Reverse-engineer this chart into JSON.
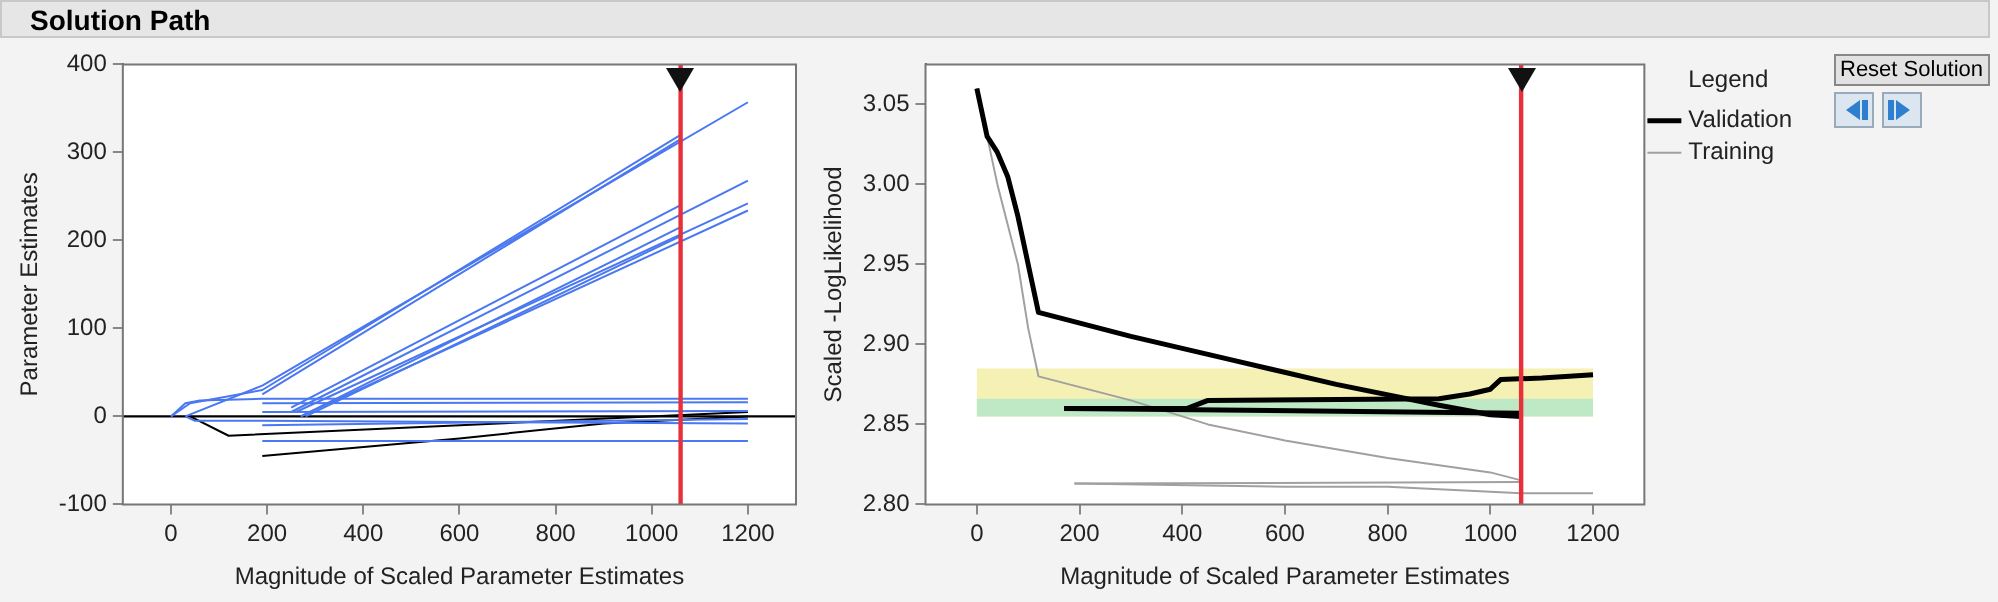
{
  "chart_data": [
    {
      "type": "line",
      "title": "Solution Path",
      "xlabel": "Magnitude of Scaled Parameter Estimates",
      "ylabel": "Parameter Estimates",
      "xlim": [
        -100,
        1300
      ],
      "xticks": [
        0,
        200,
        400,
        600,
        800,
        1000,
        1200
      ],
      "ylim": [
        -100,
        400
      ],
      "yticks": [
        -100,
        0,
        100,
        200,
        300,
        400
      ],
      "grid": false,
      "legend": false,
      "marker": "none",
      "ref_lines": [
        {
          "axis": "y",
          "value": 0,
          "color": "#000000"
        },
        {
          "axis": "x",
          "value": 1060,
          "color": "#e8303a"
        }
      ],
      "series": [
        {
          "color": "#4a78f0",
          "x": [
            0,
            40,
            190,
            1060
          ],
          "values": [
            0,
            15,
            30,
            320
          ]
        },
        {
          "color": "#4a78f0",
          "x": [
            30,
            190,
            1200
          ],
          "values": [
            0,
            35,
            357
          ]
        },
        {
          "color": "#4a78f0",
          "x": [
            190,
            1060
          ],
          "values": [
            25,
            315
          ]
        },
        {
          "color": "#4a78f0",
          "x": [
            250,
            1060
          ],
          "values": [
            10,
            240
          ]
        },
        {
          "color": "#4a78f0",
          "x": [
            250,
            1200
          ],
          "values": [
            5,
            268
          ]
        },
        {
          "color": "#4a78f0",
          "x": [
            270,
            1060
          ],
          "values": [
            0,
            215
          ]
        },
        {
          "color": "#4a78f0",
          "x": [
            280,
            1060
          ],
          "values": [
            0,
            205
          ]
        },
        {
          "color": "#4a78f0",
          "x": [
            260,
            1200
          ],
          "values": [
            5,
            242
          ]
        },
        {
          "color": "#4a78f0",
          "x": [
            270,
            1200
          ],
          "values": [
            0,
            234
          ]
        },
        {
          "color": "#4a78f0",
          "x": [
            0,
            30,
            60,
            190,
            1200
          ],
          "values": [
            0,
            15,
            18,
            20,
            20
          ]
        },
        {
          "color": "#4a78f0",
          "x": [
            190,
            1200
          ],
          "values": [
            15,
            16
          ]
        },
        {
          "color": "#4a78f0",
          "x": [
            190,
            1200
          ],
          "values": [
            5,
            6
          ]
        },
        {
          "color": "#4a78f0",
          "x": [
            30,
            50,
            190,
            1200
          ],
          "values": [
            0,
            -5,
            -5,
            -8
          ]
        },
        {
          "color": "#4a78f0",
          "x": [
            190,
            1200
          ],
          "values": [
            -10,
            -3
          ]
        },
        {
          "color": "#4a78f0",
          "x": [
            190,
            1200
          ],
          "values": [
            -28,
            -28
          ]
        },
        {
          "color": "#000000",
          "x": [
            40,
            120,
            1200
          ],
          "values": [
            0,
            -22,
            5
          ]
        },
        {
          "color": "#000000",
          "x": [
            190,
            600,
            900,
            1200
          ],
          "values": [
            -45,
            -25,
            -8,
            0
          ]
        }
      ]
    },
    {
      "type": "line",
      "xlabel": "Magnitude of Scaled Parameter Estimates",
      "ylabel": "Scaled -LogLikelihood",
      "xlim": [
        -100,
        1300
      ],
      "xticks": [
        0,
        200,
        400,
        600,
        800,
        1000,
        1200
      ],
      "ylim": [
        2.8,
        3.075
      ],
      "yticks": [
        {
          "value": 2.8,
          "label": "2.80"
        },
        {
          "value": 2.85,
          "label": "2.85"
        },
        {
          "value": 2.9,
          "label": "2.90"
        },
        {
          "value": 2.95,
          "label": "2.95"
        },
        {
          "value": 3.0,
          "label": "3.00"
        },
        {
          "value": 3.05,
          "label": "3.05"
        }
      ],
      "grid": false,
      "legend": "right",
      "legend_title": "Legend",
      "marker": "none",
      "annotations": [
        "Reset Solution"
      ],
      "bands": [
        {
          "axis": "y",
          "from": 2.855,
          "to": 2.885,
          "color": "#f5f0b4"
        },
        {
          "axis": "y",
          "from": 2.855,
          "to": 2.866,
          "color": "#bfe8c4"
        }
      ],
      "ref_lines": [
        {
          "axis": "x",
          "value": 1060,
          "color": "#e8303a"
        }
      ],
      "series": [
        {
          "name": "Validation",
          "color": "#000000",
          "x": [
            0,
            20,
            40,
            60,
            80,
            100,
            120,
            300,
            500,
            700,
            900,
            1000,
            1060
          ],
          "values": [
            3.06,
            3.03,
            3.02,
            3.005,
            2.98,
            2.95,
            2.92,
            2.905,
            2.89,
            2.875,
            2.862,
            2.856,
            2.855
          ]
        },
        {
          "color": "#000000",
          "x": [
            170,
            410,
            450,
            900,
            960,
            1000,
            1020,
            1100,
            1200
          ],
          "values": [
            2.86,
            2.86,
            2.865,
            2.866,
            2.869,
            2.872,
            2.878,
            2.879,
            2.881
          ]
        },
        {
          "color": "#000000",
          "x": [
            170,
            1060
          ],
          "values": [
            2.86,
            2.857
          ]
        },
        {
          "name": "Training",
          "color": "#a0a0a0",
          "x": [
            0,
            20,
            40,
            60,
            80,
            100,
            120,
            300,
            450,
            600,
            800,
            1000,
            1060
          ],
          "values": [
            3.06,
            3.03,
            3.0,
            2.975,
            2.95,
            2.91,
            2.88,
            2.865,
            2.85,
            2.84,
            2.829,
            2.82,
            2.815
          ]
        },
        {
          "color": "#a0a0a0",
          "x": [
            190,
            1060
          ],
          "values": [
            2.813,
            2.814
          ]
        },
        {
          "color": "#a0a0a0",
          "x": [
            190,
            600,
            800,
            1060,
            1200
          ],
          "values": [
            2.813,
            2.811,
            2.811,
            2.807,
            2.807
          ]
        }
      ]
    }
  ]
}
